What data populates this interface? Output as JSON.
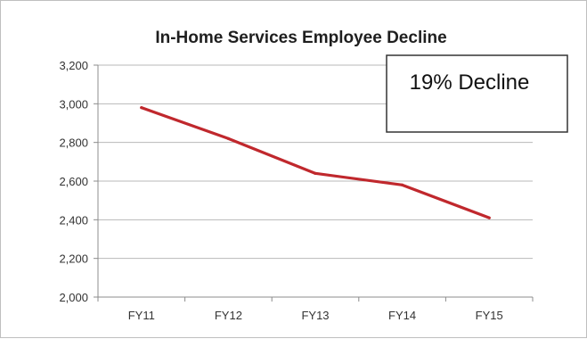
{
  "chart_data": {
    "type": "line",
    "title": "In-Home Services Employee Decline",
    "xlabel": "",
    "ylabel": "",
    "categories": [
      "FY11",
      "FY12",
      "FY13",
      "FY14",
      "FY15"
    ],
    "series": [
      {
        "values": [
          2980,
          2820,
          2640,
          2580,
          2410
        ],
        "color": "#c0282d"
      }
    ],
    "ylim": [
      2000,
      3200
    ],
    "y_ticks": [
      2000,
      2200,
      2400,
      2600,
      2800,
      3000,
      3200
    ],
    "y_tick_labels": [
      "2,000",
      "2,200",
      "2,400",
      "2,600",
      "2,800",
      "3,000",
      "3,200"
    ],
    "grid": true,
    "legend": "none",
    "annotation": "19% Decline"
  },
  "colors": {
    "line": "#c0282d",
    "grid": "#b8b8b8",
    "axis": "#8c8c8c"
  }
}
